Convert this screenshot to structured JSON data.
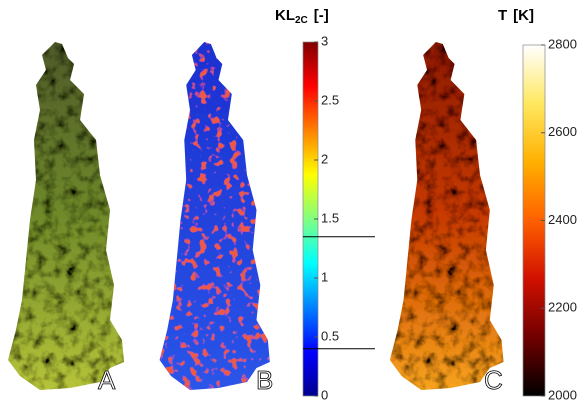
{
  "panels": [
    {
      "label": "A"
    },
    {
      "label": "B"
    },
    {
      "label": "C"
    }
  ],
  "colorbars": [
    {
      "title": "KL",
      "subscript": "2C",
      "unit": "[-]",
      "lim": [
        0,
        3
      ],
      "ticks": [
        0,
        0.5,
        1,
        1.5,
        2,
        2.5,
        3
      ],
      "colormap": "jet",
      "markers": [
        1.35,
        0.4
      ]
    },
    {
      "title": "T",
      "unit": "[K]",
      "lim": [
        2000,
        2800
      ],
      "ticks": [
        2000,
        2200,
        2400,
        2600,
        2800
      ],
      "colormap": "hot"
    }
  ]
}
